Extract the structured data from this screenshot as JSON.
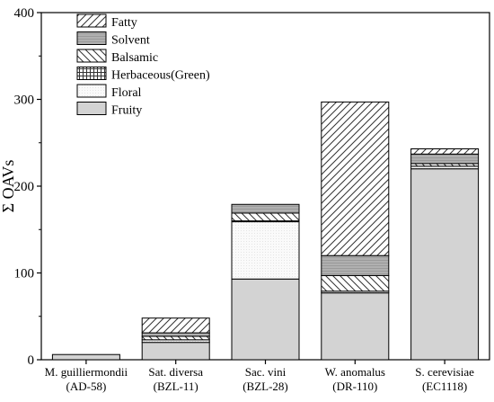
{
  "chart_data": {
    "type": "bar",
    "stacked": true,
    "title": "",
    "xlabel": "",
    "ylabel": "Σ OAVs",
    "ylim": [
      0,
      400
    ],
    "yticks": [
      0,
      100,
      200,
      300,
      400
    ],
    "grid": false,
    "legend_position": "top-left",
    "categories": [
      [
        "M. guilliermondii",
        "(AD-58)"
      ],
      [
        "Sat. diversa",
        "(BZL-11)"
      ],
      [
        "Sac. vini",
        "(BZL-28)"
      ],
      [
        "W. anomalus",
        "(DR-110)"
      ],
      [
        "S. cerevisiae",
        "(EC1118)"
      ]
    ],
    "series": [
      {
        "name": "Fruity",
        "pattern": "solid-gray",
        "values": [
          6,
          20,
          93,
          77,
          220
        ]
      },
      {
        "name": "Floral",
        "pattern": "dots",
        "values": [
          0,
          3,
          66,
          2,
          3
        ]
      },
      {
        "name": "Herbaceous(Green)",
        "pattern": "grid",
        "values": [
          0,
          0,
          1,
          0,
          0
        ]
      },
      {
        "name": "Balsamic",
        "pattern": "back-hatch",
        "values": [
          0,
          4,
          9,
          18,
          3
        ]
      },
      {
        "name": "Solvent",
        "pattern": "dense-gray",
        "values": [
          0,
          4,
          10,
          23,
          11
        ]
      },
      {
        "name": "Fatty",
        "pattern": "forward-hatch",
        "values": [
          0,
          17,
          0,
          177,
          6
        ]
      }
    ],
    "legend_order": [
      "Fatty",
      "Solvent",
      "Balsamic",
      "Herbaceous(Green)",
      "Floral",
      "Fruity"
    ]
  }
}
